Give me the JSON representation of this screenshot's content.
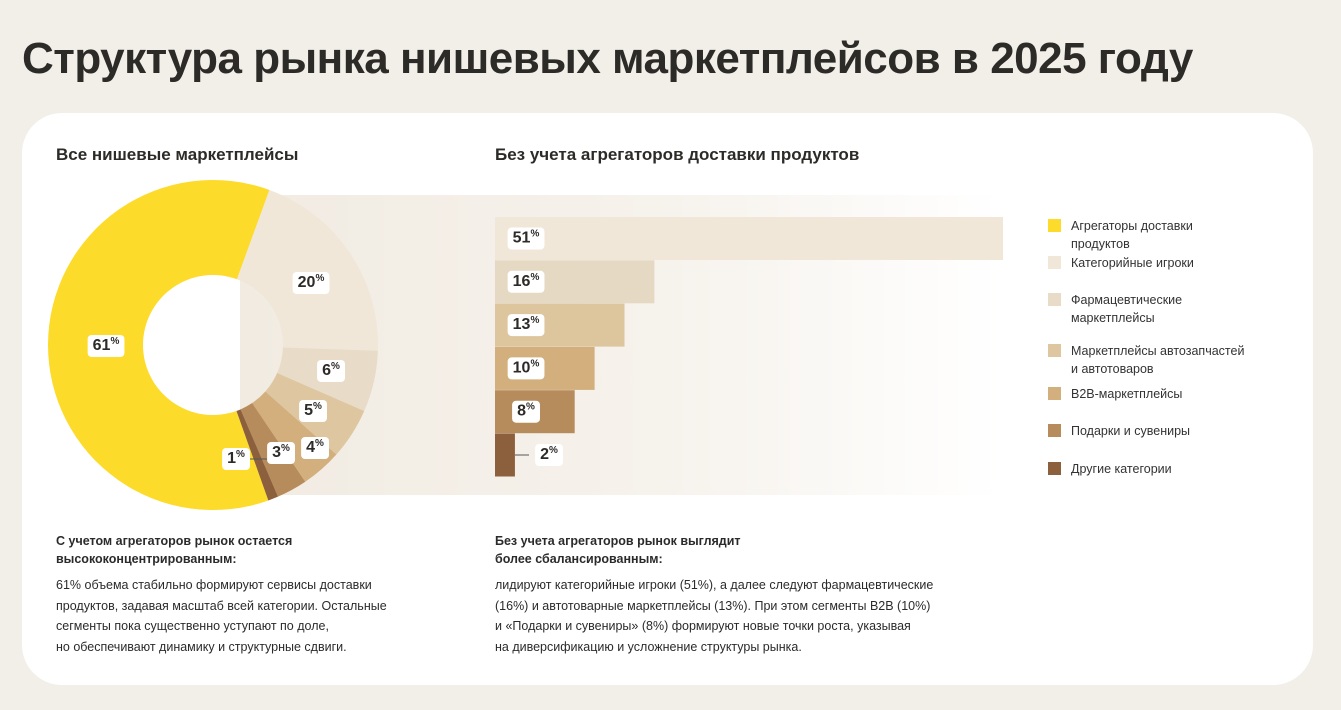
{
  "title": "Структура рынка нишевых маркетплейсов в 2025 году",
  "chart_data": [
    {
      "type": "pie",
      "title": "Все нишевые маркетплейсы",
      "categories": [
        "Агрегаторы доставки продуктов",
        "Категорийные игроки",
        "Фармацевтические маркетплейсы",
        "Маркетплейсы автозапчастей и автотоваров",
        "B2B-маркетплейсы",
        "Подарки и сувениры",
        "Другие категории"
      ],
      "values": [
        61,
        20,
        6,
        5,
        4,
        3,
        1
      ],
      "value_labels": [
        "61%",
        "20%",
        "6%",
        "5%",
        "4%",
        "3%",
        "1%"
      ],
      "colors": [
        "#fddb2b",
        "#f1e7d9",
        "#e8dcc8",
        "#dec6a0",
        "#d2af7c",
        "#b78c5c",
        "#8c5f3d"
      ],
      "note": {
        "heading": [
          "С учетом агрегаторов рынок остается",
          "высококонцентрированным:"
        ],
        "text": [
          "61% объема стабильно формируют сервисы доставки",
          "продуктов, задавая масштаб всей категории. Остальные",
          "сегменты пока существенно уступают по доле,",
          "но обеспечивают динамику и структурные сдвиги."
        ]
      }
    },
    {
      "type": "bar",
      "title": "Без учета агрегаторов доставки продуктов",
      "values": [
        51,
        16,
        13,
        10,
        8,
        2
      ],
      "value_labels": [
        "51%",
        "16%",
        "13%",
        "10%",
        "8%",
        "2%"
      ],
      "colors": [
        "#f1e7d9",
        "#e6d9c3",
        "#ddc59e",
        "#d2af7c",
        "#b78c5c",
        "#8c5f3d"
      ],
      "note": {
        "heading": [
          "Без учета агрегаторов рынок выглядит",
          "более сбалансированным:"
        ],
        "text": [
          "лидируют категорийные игроки (51%), а далее следуют фармацевтические",
          "(16%) и автотоварные маркетплейсы (13%). При этом сегменты B2B (10%)",
          "и «Подарки и сувениры» (8%) формируют новые точки роста, указывая",
          "на диверсификацию и усложнение структуры рынка."
        ]
      }
    }
  ]
}
